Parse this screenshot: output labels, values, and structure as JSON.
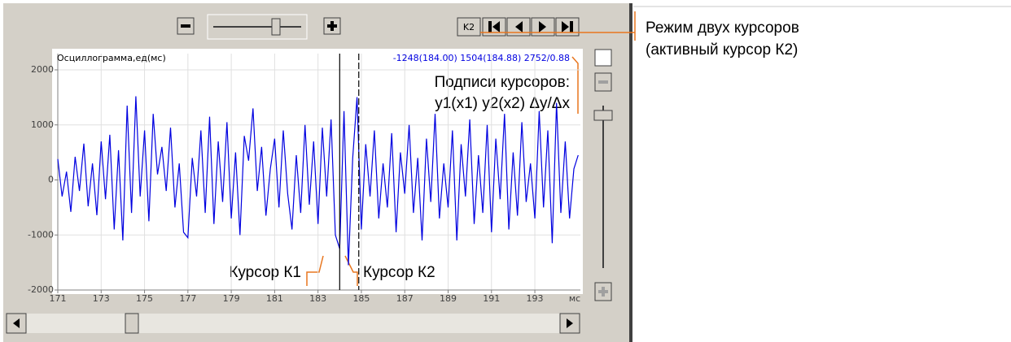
{
  "toolbar": {
    "mode_button": "K2"
  },
  "chart_data": {
    "type": "line",
    "title": "Осциллограмма,ед(мс)",
    "cursor_readout": "-1248(184.00) 1504(184.88) 2752/0.88",
    "x_unit": "мс",
    "x": [
      171,
      171.2,
      171.4,
      171.6,
      171.8,
      172,
      172.2,
      172.4,
      172.6,
      172.8,
      173,
      173.2,
      173.4,
      173.6,
      173.8,
      174,
      174.2,
      174.4,
      174.6,
      174.8,
      175,
      175.2,
      175.4,
      175.6,
      175.8,
      176,
      176.2,
      176.4,
      176.6,
      176.8,
      177,
      177.2,
      177.4,
      177.6,
      177.8,
      178,
      178.2,
      178.4,
      178.6,
      178.8,
      179,
      179.2,
      179.4,
      179.6,
      179.8,
      180,
      180.2,
      180.4,
      180.6,
      180.8,
      181,
      181.2,
      181.4,
      181.6,
      181.8,
      182,
      182.2,
      182.4,
      182.6,
      182.8,
      183,
      183.2,
      183.4,
      183.6,
      183.8,
      184,
      184.2,
      184.4,
      184.6,
      184.8,
      185,
      185.2,
      185.4,
      185.6,
      185.8,
      186,
      186.2,
      186.4,
      186.6,
      186.8,
      187,
      187.2,
      187.4,
      187.6,
      187.8,
      188,
      188.2,
      188.4,
      188.6,
      188.8,
      189,
      189.2,
      189.4,
      189.6,
      189.8,
      190,
      190.2,
      190.4,
      190.6,
      190.8,
      191,
      191.2,
      191.4,
      191.6,
      191.8,
      192,
      192.2,
      192.4,
      192.6,
      192.8,
      193,
      193.2,
      193.4,
      193.6,
      193.8,
      194,
      194.2,
      194.4,
      194.6,
      194.8,
      195
    ],
    "series": [
      {
        "color": "#0000e0",
        "values": [
          380,
          -300,
          150,
          -580,
          420,
          -200,
          660,
          -480,
          300,
          -640,
          700,
          -350,
          820,
          -900,
          540,
          -1100,
          1350,
          -600,
          1520,
          -300,
          900,
          -750,
          1200,
          100,
          600,
          -200,
          950,
          -500,
          300,
          -950,
          -1050,
          400,
          -300,
          900,
          -600,
          1150,
          -800,
          700,
          -400,
          1050,
          -700,
          500,
          -1000,
          800,
          350,
          1300,
          -200,
          600,
          -650,
          200,
          750,
          -500,
          900,
          -250,
          -900,
          450,
          -600,
          1000,
          -450,
          700,
          -800,
          950,
          -300,
          1100,
          -1000,
          -1248,
          1250,
          -1550,
          400,
          1504,
          -900,
          650,
          -300,
          900,
          -700,
          300,
          -500,
          850,
          -950,
          500,
          -250,
          1000,
          -600,
          400,
          -1100,
          750,
          -400,
          1200,
          -700,
          300,
          -500,
          900,
          -1100,
          650,
          -300,
          1100,
          -800,
          450,
          -600,
          1000,
          -950,
          750,
          -350,
          1200,
          -900,
          500,
          -650,
          1050,
          -400,
          300,
          -700,
          1250,
          -500,
          900,
          -1150,
          1400,
          -600,
          700,
          -700,
          200,
          450
        ]
      }
    ],
    "cursors": [
      184,
      184.88
    ],
    "xlim": [
      171,
      195.1
    ],
    "ylim": [
      -2000,
      2000
    ],
    "xticks": [
      171,
      173,
      175,
      177,
      179,
      181,
      183,
      185,
      187,
      189,
      191,
      193
    ],
    "yticks": [
      -2000,
      -1000,
      0,
      1000,
      2000
    ],
    "grid": true
  },
  "annotations": {
    "mode_title": "Режим двух курсоров",
    "mode_note": "(активный курсор К2)",
    "labels_title": "Подписи курсоров:",
    "labels_format": "y1(x1)  y2(x2)  Δy/Δx",
    "cursor1": "Курсор К1",
    "cursor2": "Курсор К2"
  }
}
